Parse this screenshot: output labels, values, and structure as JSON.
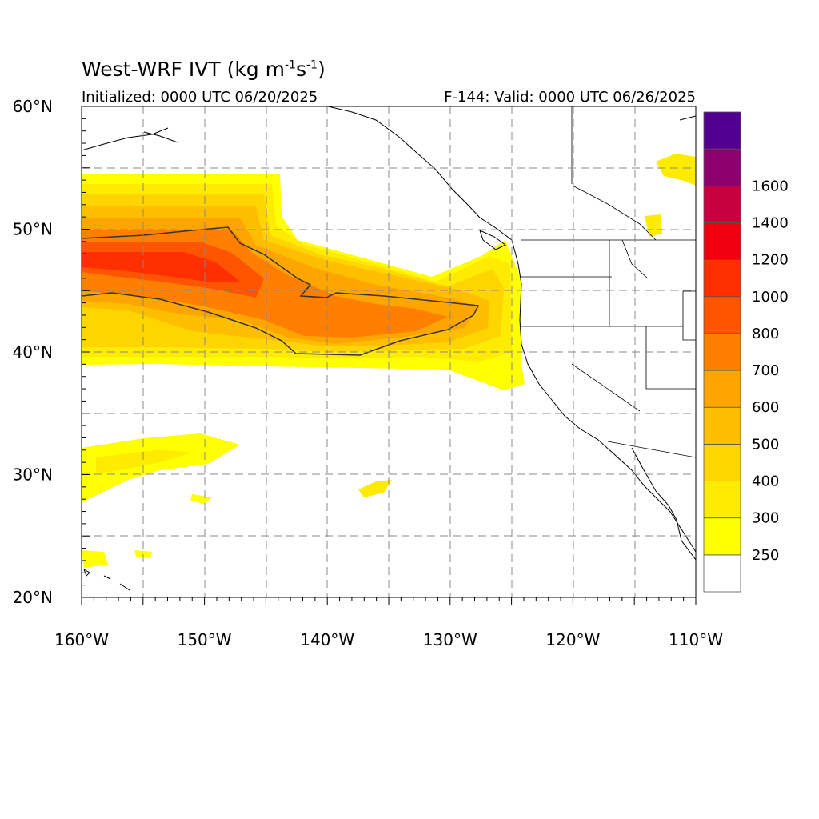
{
  "header": {
    "title_main": "West-WRF IVT (kg m",
    "title_exp1": "-1",
    "title_mid": "s",
    "title_exp2": "-1",
    "title_end": ")",
    "initialized": "Initialized: 0000 UTC 06/20/2025",
    "valid": "F-144: Valid: 0000 UTC 06/26/2025"
  },
  "map": {
    "lat_labels": [
      {
        "value": 60,
        "text": "60°N"
      },
      {
        "value": 50,
        "text": "50°N"
      },
      {
        "value": 40,
        "text": "40°N"
      },
      {
        "value": 30,
        "text": "30°N"
      },
      {
        "value": 20,
        "text": "20°N"
      }
    ],
    "lon_labels": [
      {
        "value": -160,
        "text": "160°W"
      },
      {
        "value": -150,
        "text": "150°W"
      },
      {
        "value": -140,
        "text": "140°W"
      },
      {
        "value": -130,
        "text": "130°W"
      },
      {
        "value": -120,
        "text": "120°W"
      },
      {
        "value": -110,
        "text": "110°W"
      }
    ],
    "extent": {
      "lon": [
        -160,
        -110
      ],
      "lat": [
        20,
        60
      ]
    }
  },
  "colorbar": {
    "levels": [
      {
        "color": "#ffffff",
        "label": ""
      },
      {
        "color": "#ffff00",
        "label": "250"
      },
      {
        "color": "#ffeb00",
        "label": "300"
      },
      {
        "color": "#ffd500",
        "label": "400"
      },
      {
        "color": "#ffbf00",
        "label": "500"
      },
      {
        "color": "#ffa500",
        "label": "600"
      },
      {
        "color": "#ff8000",
        "label": "700"
      },
      {
        "color": "#ff5500",
        "label": "800"
      },
      {
        "color": "#ff2f00",
        "label": "1000"
      },
      {
        "color": "#ee0010",
        "label": "1200"
      },
      {
        "color": "#c80040",
        "label": "1400"
      },
      {
        "color": "#8c006e",
        "label": "1600"
      },
      {
        "color": "#520090",
        "label": ""
      }
    ]
  }
}
